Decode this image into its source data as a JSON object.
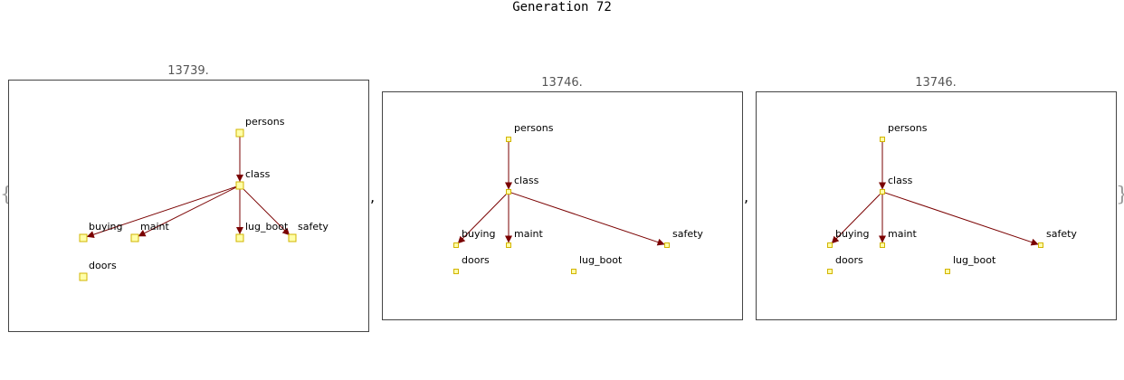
{
  "title": "Generation 72",
  "open_brace": "{",
  "close_brace": "}",
  "separator": ",",
  "colors": {
    "edge": "#7a0000",
    "node_fill": "#ffffa8",
    "node_stroke": "#d2b400",
    "border": "#444444"
  },
  "graphs": [
    {
      "score": "13739.",
      "nodes": [
        {
          "id": "persons",
          "label": "persons"
        },
        {
          "id": "class",
          "label": "class"
        },
        {
          "id": "buying",
          "label": "buying"
        },
        {
          "id": "maint",
          "label": "maint"
        },
        {
          "id": "lug_boot",
          "label": "lug_boot"
        },
        {
          "id": "safety",
          "label": "safety"
        },
        {
          "id": "doors",
          "label": "doors"
        }
      ],
      "edges": [
        {
          "from": "persons",
          "to": "class"
        },
        {
          "from": "class",
          "to": "buying"
        },
        {
          "from": "class",
          "to": "maint"
        },
        {
          "from": "class",
          "to": "lug_boot"
        },
        {
          "from": "class",
          "to": "safety"
        }
      ]
    },
    {
      "score": "13746.",
      "nodes": [
        {
          "id": "persons",
          "label": "persons"
        },
        {
          "id": "class",
          "label": "class"
        },
        {
          "id": "buying",
          "label": "buying"
        },
        {
          "id": "maint",
          "label": "maint"
        },
        {
          "id": "safety",
          "label": "safety"
        },
        {
          "id": "doors",
          "label": "doors"
        },
        {
          "id": "lug_boot",
          "label": "lug_boot"
        }
      ],
      "edges": [
        {
          "from": "persons",
          "to": "class"
        },
        {
          "from": "class",
          "to": "buying"
        },
        {
          "from": "class",
          "to": "maint"
        },
        {
          "from": "class",
          "to": "safety"
        }
      ]
    },
    {
      "score": "13746.",
      "nodes": [
        {
          "id": "persons",
          "label": "persons"
        },
        {
          "id": "class",
          "label": "class"
        },
        {
          "id": "buying",
          "label": "buying"
        },
        {
          "id": "maint",
          "label": "maint"
        },
        {
          "id": "safety",
          "label": "safety"
        },
        {
          "id": "doors",
          "label": "doors"
        },
        {
          "id": "lug_boot",
          "label": "lug_boot"
        }
      ],
      "edges": [
        {
          "from": "persons",
          "to": "class"
        },
        {
          "from": "class",
          "to": "buying"
        },
        {
          "from": "class",
          "to": "maint"
        },
        {
          "from": "class",
          "to": "safety"
        }
      ]
    }
  ]
}
